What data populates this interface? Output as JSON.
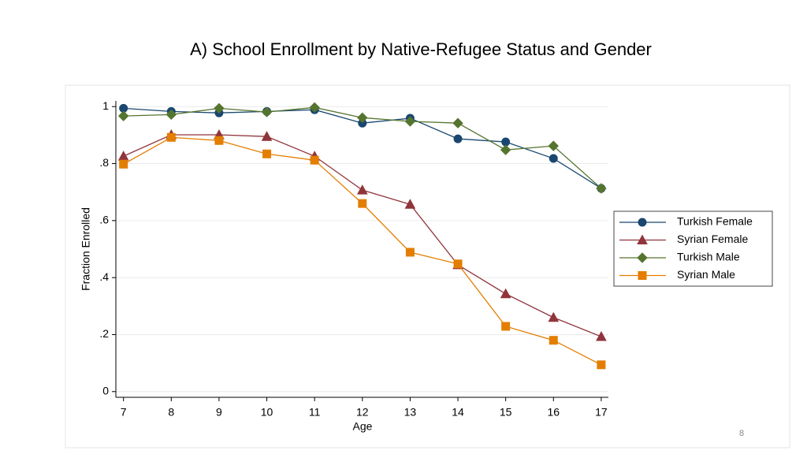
{
  "slide_number": "8",
  "chart_data": {
    "type": "line",
    "title": "A) School Enrollment by Native-Refugee Status and Gender",
    "x_label": "Age",
    "y_label": "Fraction Enrolled",
    "x": [
      7,
      8,
      9,
      10,
      11,
      12,
      13,
      14,
      15,
      16,
      17
    ],
    "xlim": [
      6.84,
      17.15
    ],
    "xticks": [
      7,
      8,
      9,
      10,
      11,
      12,
      13,
      14,
      15,
      16,
      17
    ],
    "ylim": [
      -0.02,
      1.02
    ],
    "yticks": [
      0,
      {
        "value": 0.2,
        "label": ".2"
      },
      {
        "value": 0.4,
        "label": ".4"
      },
      {
        "value": 0.6,
        "label": ".6"
      },
      {
        "value": 0.8,
        "label": ".8"
      },
      1
    ],
    "grid": true,
    "legend": "right",
    "series": [
      {
        "name": "Turkish Female",
        "color": "#1a476f",
        "marker": "circle",
        "values": [
          0.994,
          0.983,
          0.978,
          0.983,
          0.989,
          0.942,
          0.959,
          0.887,
          0.876,
          0.818,
          0.713
        ]
      },
      {
        "name": "Syrian Female",
        "color": "#90353b",
        "marker": "triangle",
        "values": [
          0.826,
          0.901,
          0.901,
          0.895,
          0.826,
          0.707,
          0.657,
          0.445,
          0.343,
          0.26,
          0.193
        ]
      },
      {
        "name": "Turkish Male",
        "color": "#55752f",
        "marker": "diamond",
        "values": [
          0.967,
          0.972,
          0.994,
          0.981,
          0.997,
          0.961,
          0.948,
          0.942,
          0.848,
          0.862,
          0.713
        ]
      },
      {
        "name": "Syrian Male",
        "color": "#e37e00",
        "marker": "square",
        "values": [
          0.798,
          0.892,
          0.881,
          0.834,
          0.812,
          0.66,
          0.489,
          0.448,
          0.229,
          0.18,
          0.094
        ]
      }
    ]
  }
}
